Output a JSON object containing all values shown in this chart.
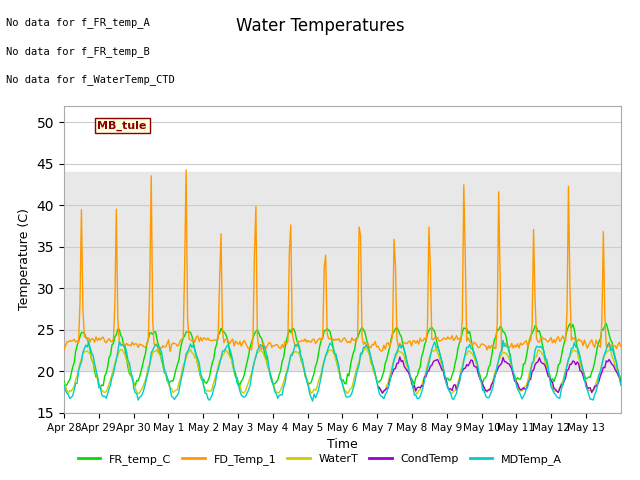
{
  "title": "Water Temperatures",
  "ylabel": "Temperature (C)",
  "xlabel": "Time",
  "ylim": [
    15,
    52
  ],
  "yticks": [
    15,
    20,
    25,
    30,
    35,
    40,
    45,
    50
  ],
  "shade_band": [
    20,
    44
  ],
  "annotation_texts": [
    "No data for f_FR_temp_A",
    "No data for f_FR_temp_B",
    "No data for f_WaterTemp_CTD"
  ],
  "mb_tule_label": "MB_tule",
  "legend_entries": [
    {
      "label": "FR_temp_C",
      "color": "#00dd00"
    },
    {
      "label": "FD_Temp_1",
      "color": "#ff9900"
    },
    {
      "label": "WaterT",
      "color": "#cccc00"
    },
    {
      "label": "CondTemp",
      "color": "#9900cc"
    },
    {
      "label": "MDTemp_A",
      "color": "#00cccc"
    }
  ],
  "background_color": "#ffffff",
  "grid_color": "#cccccc",
  "shade_color": "#e8e8e8",
  "xtick_labels": [
    "Apr 28",
    "Apr 29",
    "Apr 30",
    "May 1",
    "May 2",
    "May 3",
    "May 4",
    "May 5",
    "May 6",
    "May 7",
    "May 8",
    "May 9",
    "May 10",
    "May 11",
    "May 12",
    "May 13"
  ]
}
